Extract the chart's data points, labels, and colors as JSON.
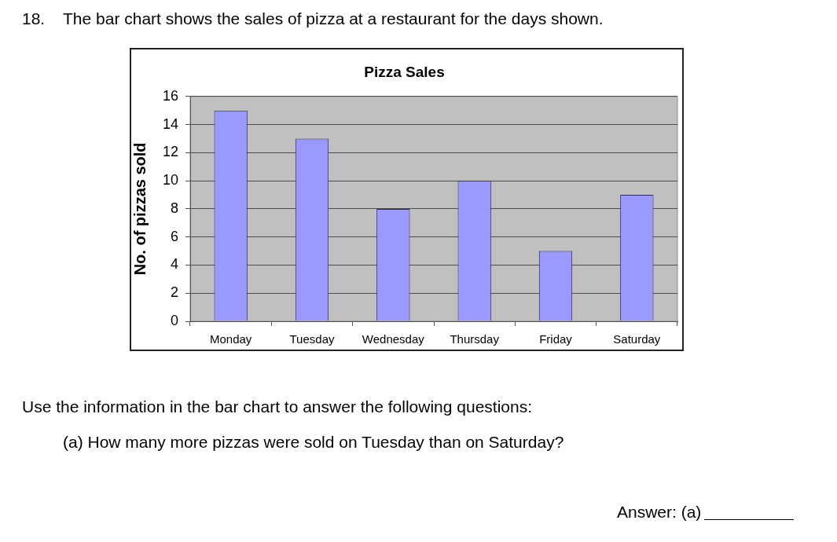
{
  "chart_data": {
    "type": "bar",
    "title": "Pizza Sales",
    "ylabel": "No. of pizzas sold",
    "categories": [
      "Monday",
      "Tuesday",
      "Wednesday",
      "Thursday",
      "Friday",
      "Saturday"
    ],
    "values": [
      15,
      13,
      8,
      10,
      5,
      9
    ],
    "color": "#9999ff",
    "ylim": [
      0,
      16
    ],
    "yticks": [
      0,
      2,
      4,
      6,
      8,
      10,
      12,
      14,
      16
    ],
    "grid": "y",
    "annotations": [
      "18.",
      "The bar chart shows the sales of pizza at a restaurant for the days shown.",
      "Use the information in the bar chart to answer the following questions:",
      "(a) How many more pizzas were sold on Tuesday than on Saturday?",
      "Answer: (a)"
    ]
  }
}
